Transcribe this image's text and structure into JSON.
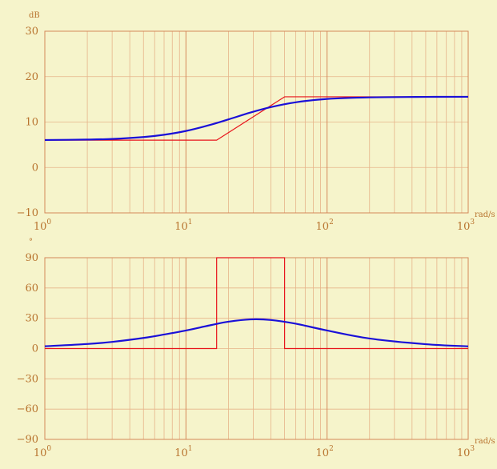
{
  "chart_data": [
    {
      "type": "line",
      "panel": "magnitude",
      "x_scale": "log",
      "xlim": [
        1,
        1000
      ],
      "ylim": [
        -10,
        30
      ],
      "ylabel": "dB",
      "xlabel": "rad/s",
      "grid": true,
      "x_tick_labels": [
        {
          "base": "10",
          "exp": "0"
        },
        {
          "base": "10",
          "exp": "1"
        },
        {
          "base": "10",
          "exp": "2"
        },
        {
          "base": "10",
          "exp": "3"
        }
      ],
      "y_tick_labels": [
        "30",
        "20",
        "10",
        "0",
        "−10"
      ],
      "y_ticks": [
        30,
        20,
        10,
        0,
        -10
      ],
      "series": [
        {
          "role": "asymptotic",
          "color": "#e8141c",
          "x": [
            1,
            16.5,
            50,
            1000
          ],
          "y": [
            6.02,
            6.02,
            15.56,
            15.56
          ]
        },
        {
          "role": "exact",
          "color": "#1a10d8",
          "x": [
            1,
            2,
            3,
            5,
            7,
            10,
            15,
            20,
            28.7,
            40,
            60,
            100,
            200,
            500,
            1000
          ],
          "y": [
            6.05,
            6.14,
            6.28,
            6.7,
            7.2,
            8.04,
            9.41,
            10.58,
            12.1,
            13.29,
            14.35,
            15.09,
            15.43,
            15.54,
            15.56
          ]
        }
      ]
    },
    {
      "type": "line",
      "panel": "phase",
      "x_scale": "log",
      "xlim": [
        1,
        1000
      ],
      "ylim": [
        -90,
        90
      ],
      "ylabel": "°",
      "xlabel": "rad/s",
      "grid": true,
      "x_tick_labels": [
        {
          "base": "10",
          "exp": "0"
        },
        {
          "base": "10",
          "exp": "1"
        },
        {
          "base": "10",
          "exp": "2"
        },
        {
          "base": "10",
          "exp": "3"
        }
      ],
      "y_tick_labels": [
        "90",
        "60",
        "30",
        "0",
        "−30",
        "−60",
        "−90"
      ],
      "y_ticks": [
        90,
        60,
        30,
        0,
        -30,
        -60,
        -90
      ],
      "series": [
        {
          "role": "asymptotic",
          "color": "#e8141c",
          "x": [
            1,
            16.5,
            16.5,
            50,
            50,
            1000
          ],
          "y": [
            0,
            0,
            90,
            90,
            0,
            0
          ]
        },
        {
          "role": "exact",
          "color": "#1a10d8",
          "x": [
            1,
            2,
            3,
            5,
            7,
            10,
            15,
            20,
            28.7,
            40,
            60,
            100,
            200,
            500,
            1000
          ],
          "y": [
            2.28,
            4.5,
            6.6,
            10.5,
            13.9,
            17.9,
            23.2,
            26.6,
            28.9,
            28.3,
            24.6,
            17.9,
            9.98,
            4.3,
            2.2
          ]
        }
      ]
    }
  ]
}
